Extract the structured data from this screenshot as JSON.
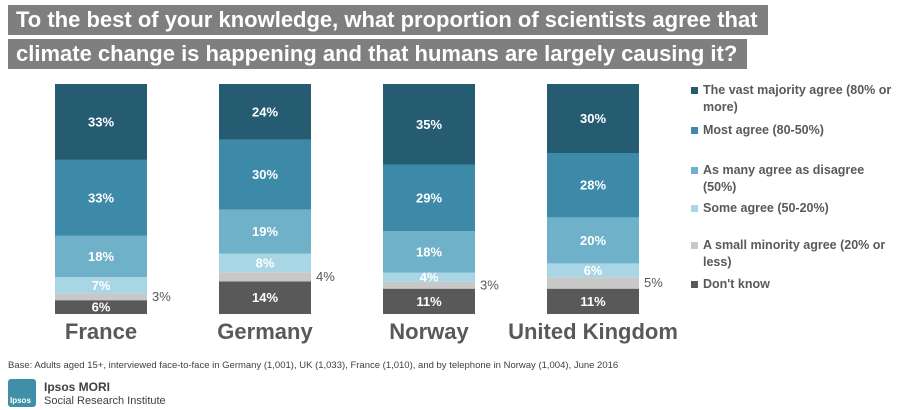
{
  "title_lines": [
    "To the best of your knowledge, what proportion of scientists agree that",
    "climate change is happening and that humans are largely causing it?"
  ],
  "footnote": "Base: Adults aged 15+, interviewed face-to-face in Germany (1,001), UK (1,033), France (1,010), and by telephone in Norway (1,004), June 2016",
  "org": {
    "name": "Ipsos MORI",
    "subtitle": "Social Research Institute",
    "logo_text": "Ipsos"
  },
  "colors": {
    "vast_majority": "#255c72",
    "most": "#3c8aa8",
    "as_many": "#6fb1c9",
    "some": "#a8d6e4",
    "small_minority": "#c8c8c8",
    "dont_know": "#595959"
  },
  "chart_data": {
    "type": "bar",
    "stacked": true,
    "percent": true,
    "categories": [
      "France",
      "Germany",
      "Norway",
      "United Kingdom"
    ],
    "series": [
      {
        "name": "Don't know",
        "key": "dont_know",
        "values": [
          6,
          14,
          11,
          11
        ]
      },
      {
        "name": "A small minority agree (20% or less)",
        "key": "small_minority",
        "values": [
          3,
          4,
          3,
          5
        ]
      },
      {
        "name": "Some agree (50-20%)",
        "key": "some",
        "values": [
          7,
          8,
          4,
          6
        ]
      },
      {
        "name": "As many agree as disagree (50%)",
        "key": "as_many",
        "values": [
          18,
          19,
          18,
          20
        ]
      },
      {
        "name": "Most agree (80-50%)",
        "key": "most",
        "values": [
          33,
          30,
          29,
          28
        ]
      },
      {
        "name": "The vast majority agree (80% or more)",
        "key": "vast_majority",
        "values": [
          33,
          24,
          35,
          30
        ]
      }
    ],
    "legend_order": [
      "vast_majority",
      "most",
      "as_many",
      "some",
      "small_minority",
      "dont_know"
    ],
    "legend_position": "right"
  }
}
